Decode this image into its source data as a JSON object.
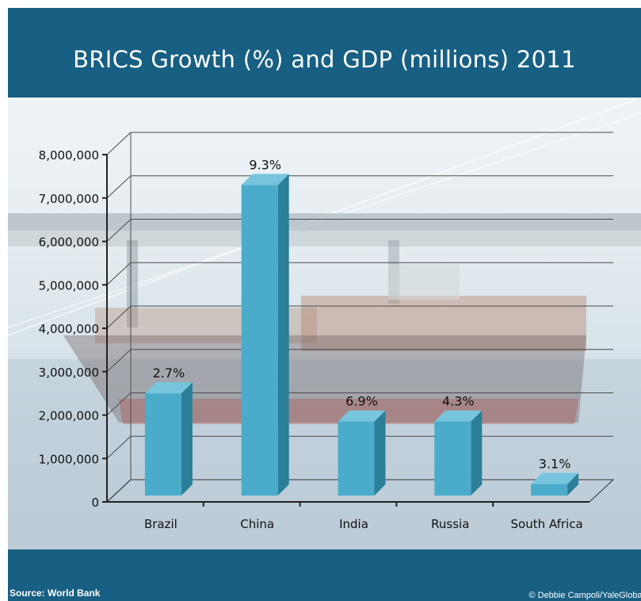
{
  "page": {
    "title": "BRICS Growth (%) and GDP (millions) 2011",
    "source": "Source: World Bank",
    "credit": "© Debbie Campoli/YaleGlobal"
  },
  "colors": {
    "header": "#175f83",
    "bar_front": "#4aacca",
    "bar_side": "#2b7f98",
    "bar_top": "#76c5dc"
  },
  "chart_data": {
    "type": "bar",
    "title": "",
    "xlabel": "",
    "ylabel": "",
    "categories": [
      "Brazil",
      "China",
      "India",
      "Russia",
      "South Africa"
    ],
    "values": [
      2500000,
      7300000,
      1850000,
      1850000,
      410000
    ],
    "data_labels": [
      "2.7%",
      "9.3%",
      "6.9%",
      "4.3%",
      "3.1%"
    ],
    "ylim": [
      0,
      8000000
    ],
    "yticks": [
      0,
      1000000,
      2000000,
      3000000,
      4000000,
      5000000,
      6000000,
      7000000,
      8000000
    ],
    "ytick_labels": [
      "0",
      "1,000,000",
      "2,000,000",
      "3,000,000",
      "4,000,000",
      "5,000,000",
      "6,000,000",
      "7,000,000",
      "8,000,000"
    ],
    "grid": true,
    "legend": "none"
  }
}
